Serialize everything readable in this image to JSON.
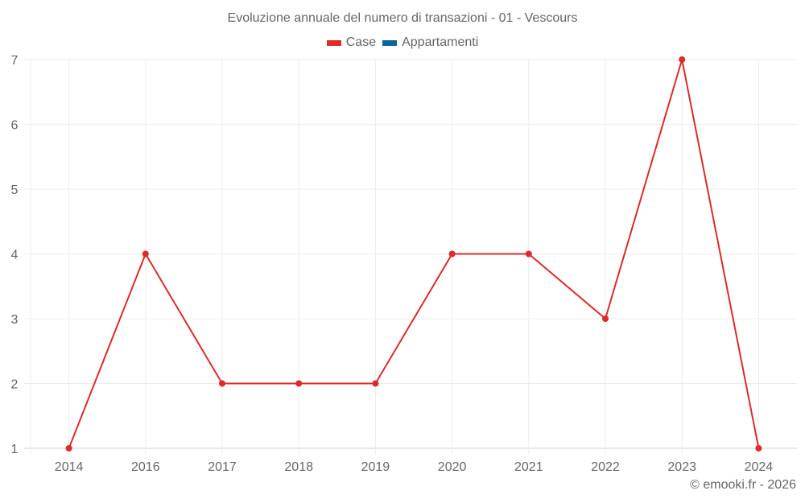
{
  "chart_data": {
    "type": "line",
    "title": "Evoluzione annuale del numero di transazioni - 01 - Vescours",
    "categories": [
      "2014",
      "2016",
      "2017",
      "2018",
      "2019",
      "2020",
      "2021",
      "2022",
      "2023",
      "2024"
    ],
    "series": [
      {
        "name": "Case",
        "color": "#dd2a2a",
        "values": [
          1,
          4,
          2,
          2,
          2,
          4,
          4,
          3,
          7,
          1
        ]
      },
      {
        "name": "Appartamenti",
        "color": "#0b64a0",
        "values": []
      }
    ],
    "xlabel": "",
    "ylabel": "",
    "ylim": [
      1,
      7
    ],
    "yticks": [
      1,
      2,
      3,
      4,
      5,
      6,
      7
    ],
    "grid": true,
    "legend_position": "top"
  },
  "title": "Evoluzione annuale del numero di transazioni - 01 - Vescours",
  "legend": {
    "items": [
      {
        "label": "Case",
        "color": "#dd2a2a"
      },
      {
        "label": "Appartamenti",
        "color": "#0b64a0"
      }
    ]
  },
  "credit": "© emooki.fr - 2026"
}
